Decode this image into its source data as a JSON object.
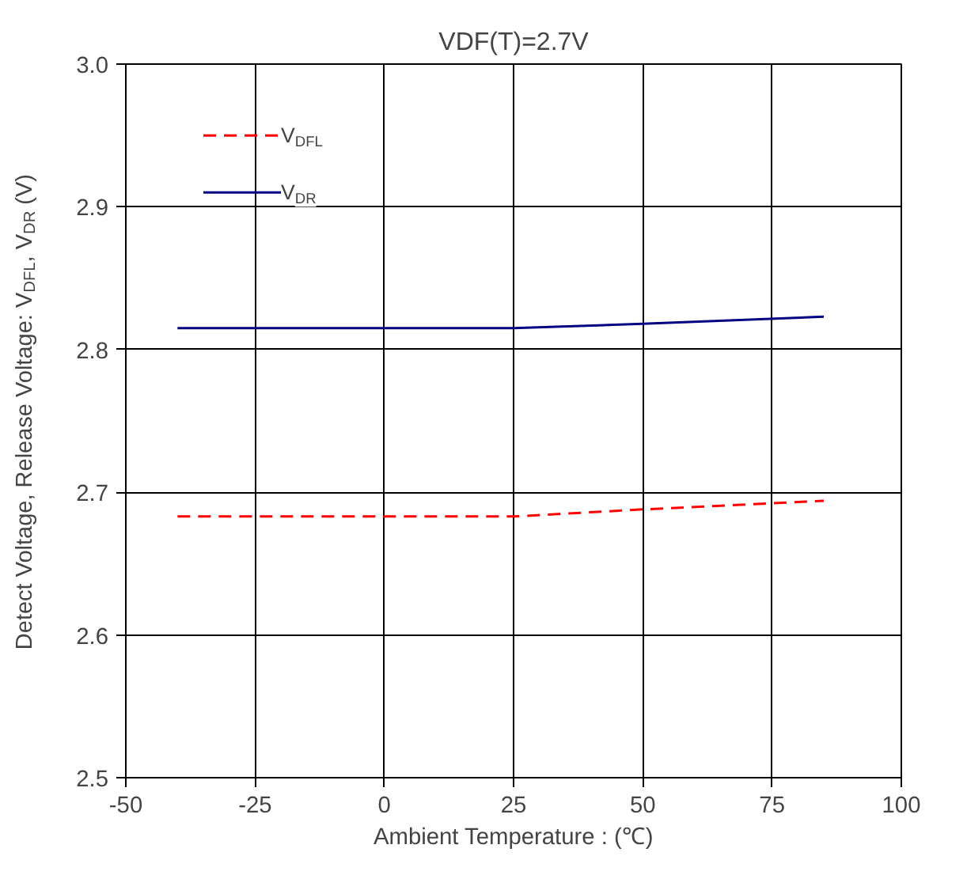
{
  "chart_data": {
    "type": "line",
    "title": "VDF(T)=2.7V",
    "xlabel": "Ambient Temperature : (℃)",
    "ylabel": "Detect Voltage, Release Voltage: V$_{DFL}$, V$_{DR}$ (V)",
    "x": [
      -40,
      25,
      50,
      85
    ],
    "series": [
      {
        "name": "V$_{DFL}$",
        "color": "#ff0000",
        "line_style": "dashed",
        "values": [
          2.683,
          2.683,
          2.688,
          2.694
        ]
      },
      {
        "name": "V$_{DR}$",
        "color": "#000080",
        "line_style": "solid",
        "values": [
          2.815,
          2.815,
          2.818,
          2.823
        ]
      }
    ],
    "xlim": [
      -50,
      100
    ],
    "xticks": [
      -50,
      -25,
      0,
      25,
      50,
      75,
      100
    ],
    "ylim": [
      2.5,
      3.0
    ],
    "yticks": [
      {
        "value": 2.5,
        "label": "2.5"
      },
      {
        "value": 2.6,
        "label": "2.6"
      },
      {
        "value": 2.7,
        "label": "2.7"
      },
      {
        "value": 2.8,
        "label": "2.8"
      },
      {
        "value": 2.9,
        "label": "2.9"
      },
      {
        "value": 3.0,
        "label": "3.0"
      }
    ],
    "grid": true,
    "legend": "top left",
    "marker": "none"
  }
}
